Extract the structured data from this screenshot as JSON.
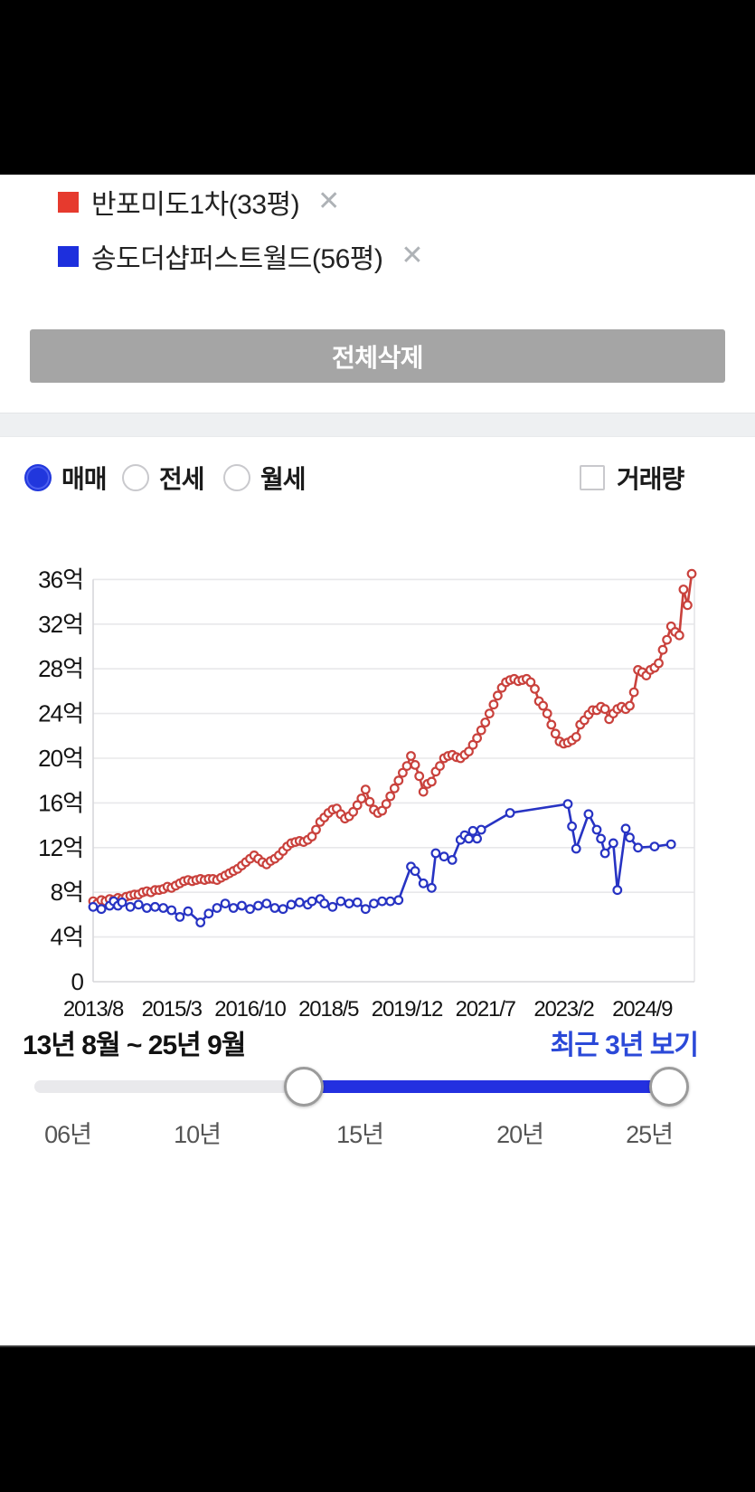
{
  "legend": {
    "items": [
      {
        "label": "반포미도1차(33평)",
        "color": "#e63a2e",
        "remove_icon": "✕"
      },
      {
        "label": "송도더샵퍼스트월드(56평)",
        "color": "#1d2fdd",
        "remove_icon": "✕"
      }
    ]
  },
  "delete_all_button": {
    "label": "전체삭제"
  },
  "filters": {
    "radios": [
      {
        "label": "매매",
        "selected": true
      },
      {
        "label": "전세",
        "selected": false
      },
      {
        "label": "월세",
        "selected": false
      }
    ],
    "volume_checkbox": {
      "label": "거래량",
      "checked": false
    },
    "accent_color": "#2137dd"
  },
  "chart_data": {
    "type": "line",
    "title": "",
    "y_axis": {
      "unit": "억",
      "ticks": [
        36,
        32,
        28,
        24,
        20,
        16,
        12,
        8,
        4,
        0
      ],
      "min": 0,
      "max": 38
    },
    "x_axis": {
      "tick_labels": [
        "2013/8",
        "2015/3",
        "2016/10",
        "2018/5",
        "2019/12",
        "2021/7",
        "2023/2",
        "2024/9"
      ],
      "tick_months": [
        0,
        19,
        38,
        57,
        76,
        95,
        114,
        133
      ],
      "start": "2013/8",
      "end": "2025/9",
      "max_month": 145
    },
    "grid": true,
    "legend_position": "above-card",
    "series": [
      {
        "name": "반포미도1차(33평)",
        "color": "#c9413c",
        "interval": "monthly from 2013/8",
        "values": [
          7.2,
          7.0,
          7.3,
          7.2,
          7.4,
          7.3,
          7.5,
          7.4,
          7.6,
          7.7,
          7.8,
          7.8,
          8.0,
          8.1,
          8.0,
          8.2,
          8.2,
          8.3,
          8.5,
          8.4,
          8.6,
          8.8,
          9.0,
          9.1,
          9.0,
          9.1,
          9.2,
          9.1,
          9.2,
          9.2,
          9.1,
          9.3,
          9.5,
          9.7,
          9.9,
          10.1,
          10.4,
          10.7,
          11.0,
          11.3,
          11.0,
          10.7,
          10.5,
          10.8,
          11.0,
          11.3,
          11.7,
          12.1,
          12.4,
          12.5,
          12.6,
          12.5,
          12.7,
          13.0,
          13.6,
          14.3,
          14.7,
          15.1,
          15.4,
          15.5,
          15.0,
          14.6,
          14.8,
          15.2,
          15.8,
          16.4,
          17.2,
          16.1,
          15.4,
          15.1,
          15.3,
          15.9,
          16.6,
          17.3,
          18.0,
          18.7,
          19.3,
          20.2,
          19.4,
          18.4,
          17.0,
          17.7,
          17.9,
          18.8,
          19.3,
          20.0,
          20.2,
          20.3,
          20.1,
          20.0,
          20.3,
          20.6,
          21.2,
          21.8,
          22.5,
          23.2,
          24.0,
          24.8,
          25.6,
          26.3,
          26.8,
          27.0,
          27.1,
          26.9,
          27.0,
          27.1,
          26.8,
          26.2,
          25.1,
          24.7,
          24.0,
          23.0,
          22.2,
          21.5,
          21.3,
          21.4,
          21.6,
          21.9,
          23.0,
          23.4,
          23.9,
          24.3,
          24.3,
          24.6,
          24.4,
          23.5,
          24.0,
          24.4,
          24.6,
          24.4,
          24.7,
          25.9,
          27.9,
          27.7,
          27.4,
          27.9,
          28.1,
          28.5,
          29.7,
          30.6,
          31.8,
          31.3,
          31.0,
          35.1,
          33.7,
          36.5
        ]
      },
      {
        "name": "송도더샵퍼스트월드(56평)",
        "color": "#2733c3",
        "interval": "sparse [month_index_from_2013/8, price]",
        "points": [
          [
            0,
            6.7
          ],
          [
            2,
            6.5
          ],
          [
            4,
            6.8
          ],
          [
            5,
            7.2
          ],
          [
            6,
            6.8
          ],
          [
            7,
            7.1
          ],
          [
            9,
            6.7
          ],
          [
            11,
            6.9
          ],
          [
            13,
            6.6
          ],
          [
            15,
            6.7
          ],
          [
            17,
            6.6
          ],
          [
            19,
            6.4
          ],
          [
            21,
            5.8
          ],
          [
            23,
            6.3
          ],
          [
            26,
            5.3
          ],
          [
            28,
            6.1
          ],
          [
            30,
            6.6
          ],
          [
            32,
            7.0
          ],
          [
            34,
            6.6
          ],
          [
            36,
            6.8
          ],
          [
            38,
            6.5
          ],
          [
            40,
            6.8
          ],
          [
            42,
            7.0
          ],
          [
            44,
            6.6
          ],
          [
            46,
            6.5
          ],
          [
            48,
            6.9
          ],
          [
            50,
            7.1
          ],
          [
            52,
            6.9
          ],
          [
            53,
            7.2
          ],
          [
            55,
            7.4
          ],
          [
            56,
            7.0
          ],
          [
            58,
            6.7
          ],
          [
            60,
            7.2
          ],
          [
            62,
            7.0
          ],
          [
            64,
            7.1
          ],
          [
            66,
            6.5
          ],
          [
            68,
            7.0
          ],
          [
            70,
            7.2
          ],
          [
            72,
            7.2
          ],
          [
            74,
            7.3
          ],
          [
            77,
            10.3
          ],
          [
            78,
            9.9
          ],
          [
            80,
            8.8
          ],
          [
            82,
            8.4
          ],
          [
            83,
            11.5
          ],
          [
            85,
            11.2
          ],
          [
            87,
            10.9
          ],
          [
            89,
            12.7
          ],
          [
            90,
            13.1
          ],
          [
            91,
            12.8
          ],
          [
            92,
            13.5
          ],
          [
            93,
            12.8
          ],
          [
            94,
            13.6
          ],
          [
            101,
            15.1
          ],
          [
            115,
            15.9
          ],
          [
            116,
            13.9
          ],
          [
            117,
            11.9
          ],
          [
            120,
            15.0
          ],
          [
            122,
            13.6
          ],
          [
            123,
            12.8
          ],
          [
            124,
            11.5
          ],
          [
            126,
            12.4
          ],
          [
            127,
            8.2
          ],
          [
            129,
            13.7
          ],
          [
            130,
            12.9
          ],
          [
            132,
            12.0
          ],
          [
            136,
            12.1
          ],
          [
            140,
            12.3
          ]
        ]
      }
    ]
  },
  "range_info": {
    "label": "13년 8월 ~ 25년 9월",
    "quick_link": "최근 3년 보기"
  },
  "slider": {
    "tick_labels": [
      "06년",
      "10년",
      "15년",
      "20년",
      "25년"
    ],
    "start_pct": 42.45,
    "end_pct": 100,
    "fill_color": "#2330e0"
  }
}
